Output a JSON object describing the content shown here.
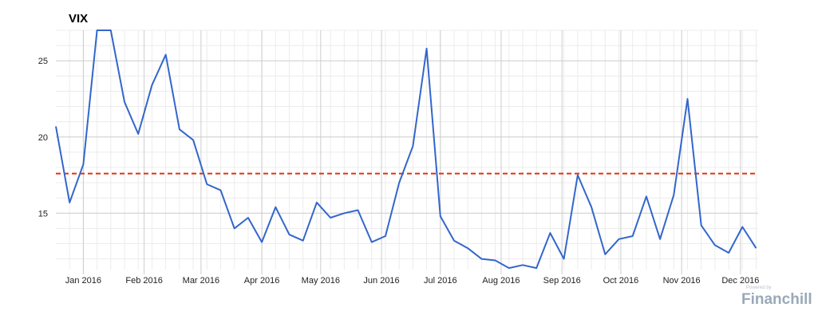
{
  "chart_data": {
    "type": "line",
    "title": "VIX",
    "xlabel": "",
    "ylabel": "",
    "ylim": [
      11.3,
      27
    ],
    "y_ticks": [
      15,
      20,
      25
    ],
    "x_ticks": [
      {
        "label": "Jan 2016",
        "date": "2016-01-01"
      },
      {
        "label": "Feb 2016",
        "date": "2016-02-01"
      },
      {
        "label": "Mar 2016",
        "date": "2016-03-01"
      },
      {
        "label": "Apr 2016",
        "date": "2016-04-01"
      },
      {
        "label": "May 2016",
        "date": "2016-05-01"
      },
      {
        "label": "Jun 2016",
        "date": "2016-06-01"
      },
      {
        "label": "Jul 2016",
        "date": "2016-07-01"
      },
      {
        "label": "Aug 2016",
        "date": "2016-08-01"
      },
      {
        "label": "Sep 2016",
        "date": "2016-09-01"
      },
      {
        "label": "Oct 2016",
        "date": "2016-10-01"
      },
      {
        "label": "Nov 2016",
        "date": "2016-11-01"
      },
      {
        "label": "Dec 2016",
        "date": "2016-12-01"
      }
    ],
    "xlim": [
      "2015-12-18",
      "2016-12-10"
    ],
    "grid": true,
    "series": [
      {
        "color": "#3366cc",
        "points": [
          [
            "2015-12-18",
            20.7
          ],
          [
            "2015-12-25",
            15.7
          ],
          [
            "2016-01-01",
            18.2
          ],
          [
            "2016-01-08",
            27.0
          ],
          [
            "2016-01-15",
            27.0
          ],
          [
            "2016-01-22",
            22.3
          ],
          [
            "2016-01-29",
            20.2
          ],
          [
            "2016-02-05",
            23.4
          ],
          [
            "2016-02-12",
            25.4
          ],
          [
            "2016-02-19",
            20.5
          ],
          [
            "2016-02-26",
            19.8
          ],
          [
            "2016-03-04",
            16.9
          ],
          [
            "2016-03-11",
            16.5
          ],
          [
            "2016-03-18",
            14.0
          ],
          [
            "2016-03-25",
            14.7
          ],
          [
            "2016-04-01",
            13.1
          ],
          [
            "2016-04-08",
            15.4
          ],
          [
            "2016-04-15",
            13.6
          ],
          [
            "2016-04-22",
            13.2
          ],
          [
            "2016-04-29",
            15.7
          ],
          [
            "2016-05-06",
            14.7
          ],
          [
            "2016-05-13",
            15.0
          ],
          [
            "2016-05-20",
            15.2
          ],
          [
            "2016-05-27",
            13.1
          ],
          [
            "2016-06-03",
            13.5
          ],
          [
            "2016-06-10",
            17.0
          ],
          [
            "2016-06-17",
            19.4
          ],
          [
            "2016-06-24",
            25.8
          ],
          [
            "2016-07-01",
            14.8
          ],
          [
            "2016-07-08",
            13.2
          ],
          [
            "2016-07-15",
            12.7
          ],
          [
            "2016-07-22",
            12.0
          ],
          [
            "2016-07-29",
            11.9
          ],
          [
            "2016-08-05",
            11.4
          ],
          [
            "2016-08-12",
            11.6
          ],
          [
            "2016-08-19",
            11.4
          ],
          [
            "2016-08-26",
            13.7
          ],
          [
            "2016-09-02",
            12.0
          ],
          [
            "2016-09-09",
            17.5
          ],
          [
            "2016-09-16",
            15.4
          ],
          [
            "2016-09-23",
            12.3
          ],
          [
            "2016-09-30",
            13.3
          ],
          [
            "2016-10-07",
            13.5
          ],
          [
            "2016-10-14",
            16.1
          ],
          [
            "2016-10-21",
            13.3
          ],
          [
            "2016-10-28",
            16.2
          ],
          [
            "2016-11-04",
            22.5
          ],
          [
            "2016-11-11",
            14.2
          ],
          [
            "2016-11-18",
            12.9
          ],
          [
            "2016-11-25",
            12.4
          ],
          [
            "2016-12-02",
            14.1
          ],
          [
            "2016-12-09",
            12.7
          ]
        ]
      }
    ],
    "reference_line": {
      "y": 17.6,
      "color": "#dd3311",
      "style": "dashed"
    }
  },
  "watermark": {
    "small": "Powered by",
    "brand": "Financhill"
  }
}
